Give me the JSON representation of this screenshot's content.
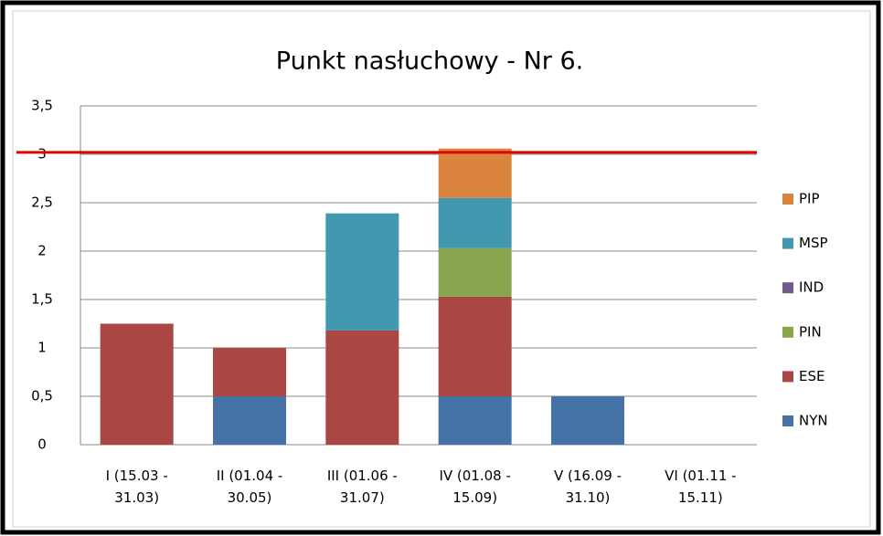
{
  "chart_data": {
    "type": "stacked-bar",
    "title": "Punkt nasłuchowy - Nr 6.",
    "categories": [
      "I (15.03 -\n31.03)",
      "II (01.04 -\n30.05)",
      "III (01.06 -\n31.07)",
      "IV (01.08 -\n15.09)",
      "V (16.09 -\n31.10)",
      "VI (01.11 -\n15.11)"
    ],
    "series": [
      {
        "name": "NYN",
        "color": "#4572a7",
        "values": [
          0,
          0.5,
          0,
          0.5,
          0.5,
          0
        ]
      },
      {
        "name": "ESE",
        "color": "#aa4643",
        "values": [
          1.25,
          0.5,
          1.18,
          1.03,
          0,
          0
        ]
      },
      {
        "name": "PIN",
        "color": "#89a54e",
        "values": [
          0,
          0,
          0,
          0.5,
          0,
          0
        ]
      },
      {
        "name": "IND",
        "color": "#71588f",
        "values": [
          0,
          0,
          0,
          0,
          0,
          0
        ]
      },
      {
        "name": "MSP",
        "color": "#4198af",
        "values": [
          0,
          0,
          1.21,
          0.52,
          0,
          0
        ]
      },
      {
        "name": "PIP",
        "color": "#db843d",
        "values": [
          0,
          0,
          0,
          0.51,
          0,
          0
        ]
      }
    ],
    "ylim": [
      0,
      3.5
    ],
    "yticks": [
      0,
      {
        "value": 0.5,
        "label": "0,5"
      },
      1,
      {
        "value": 1.5,
        "label": "1,5"
      },
      2,
      {
        "value": 2.5,
        "label": "2,5"
      },
      3,
      {
        "value": 3.5,
        "label": "3,5"
      }
    ],
    "grid": true,
    "legend": "right",
    "reference_line": {
      "value": 3.02,
      "color": "#e00000"
    }
  }
}
